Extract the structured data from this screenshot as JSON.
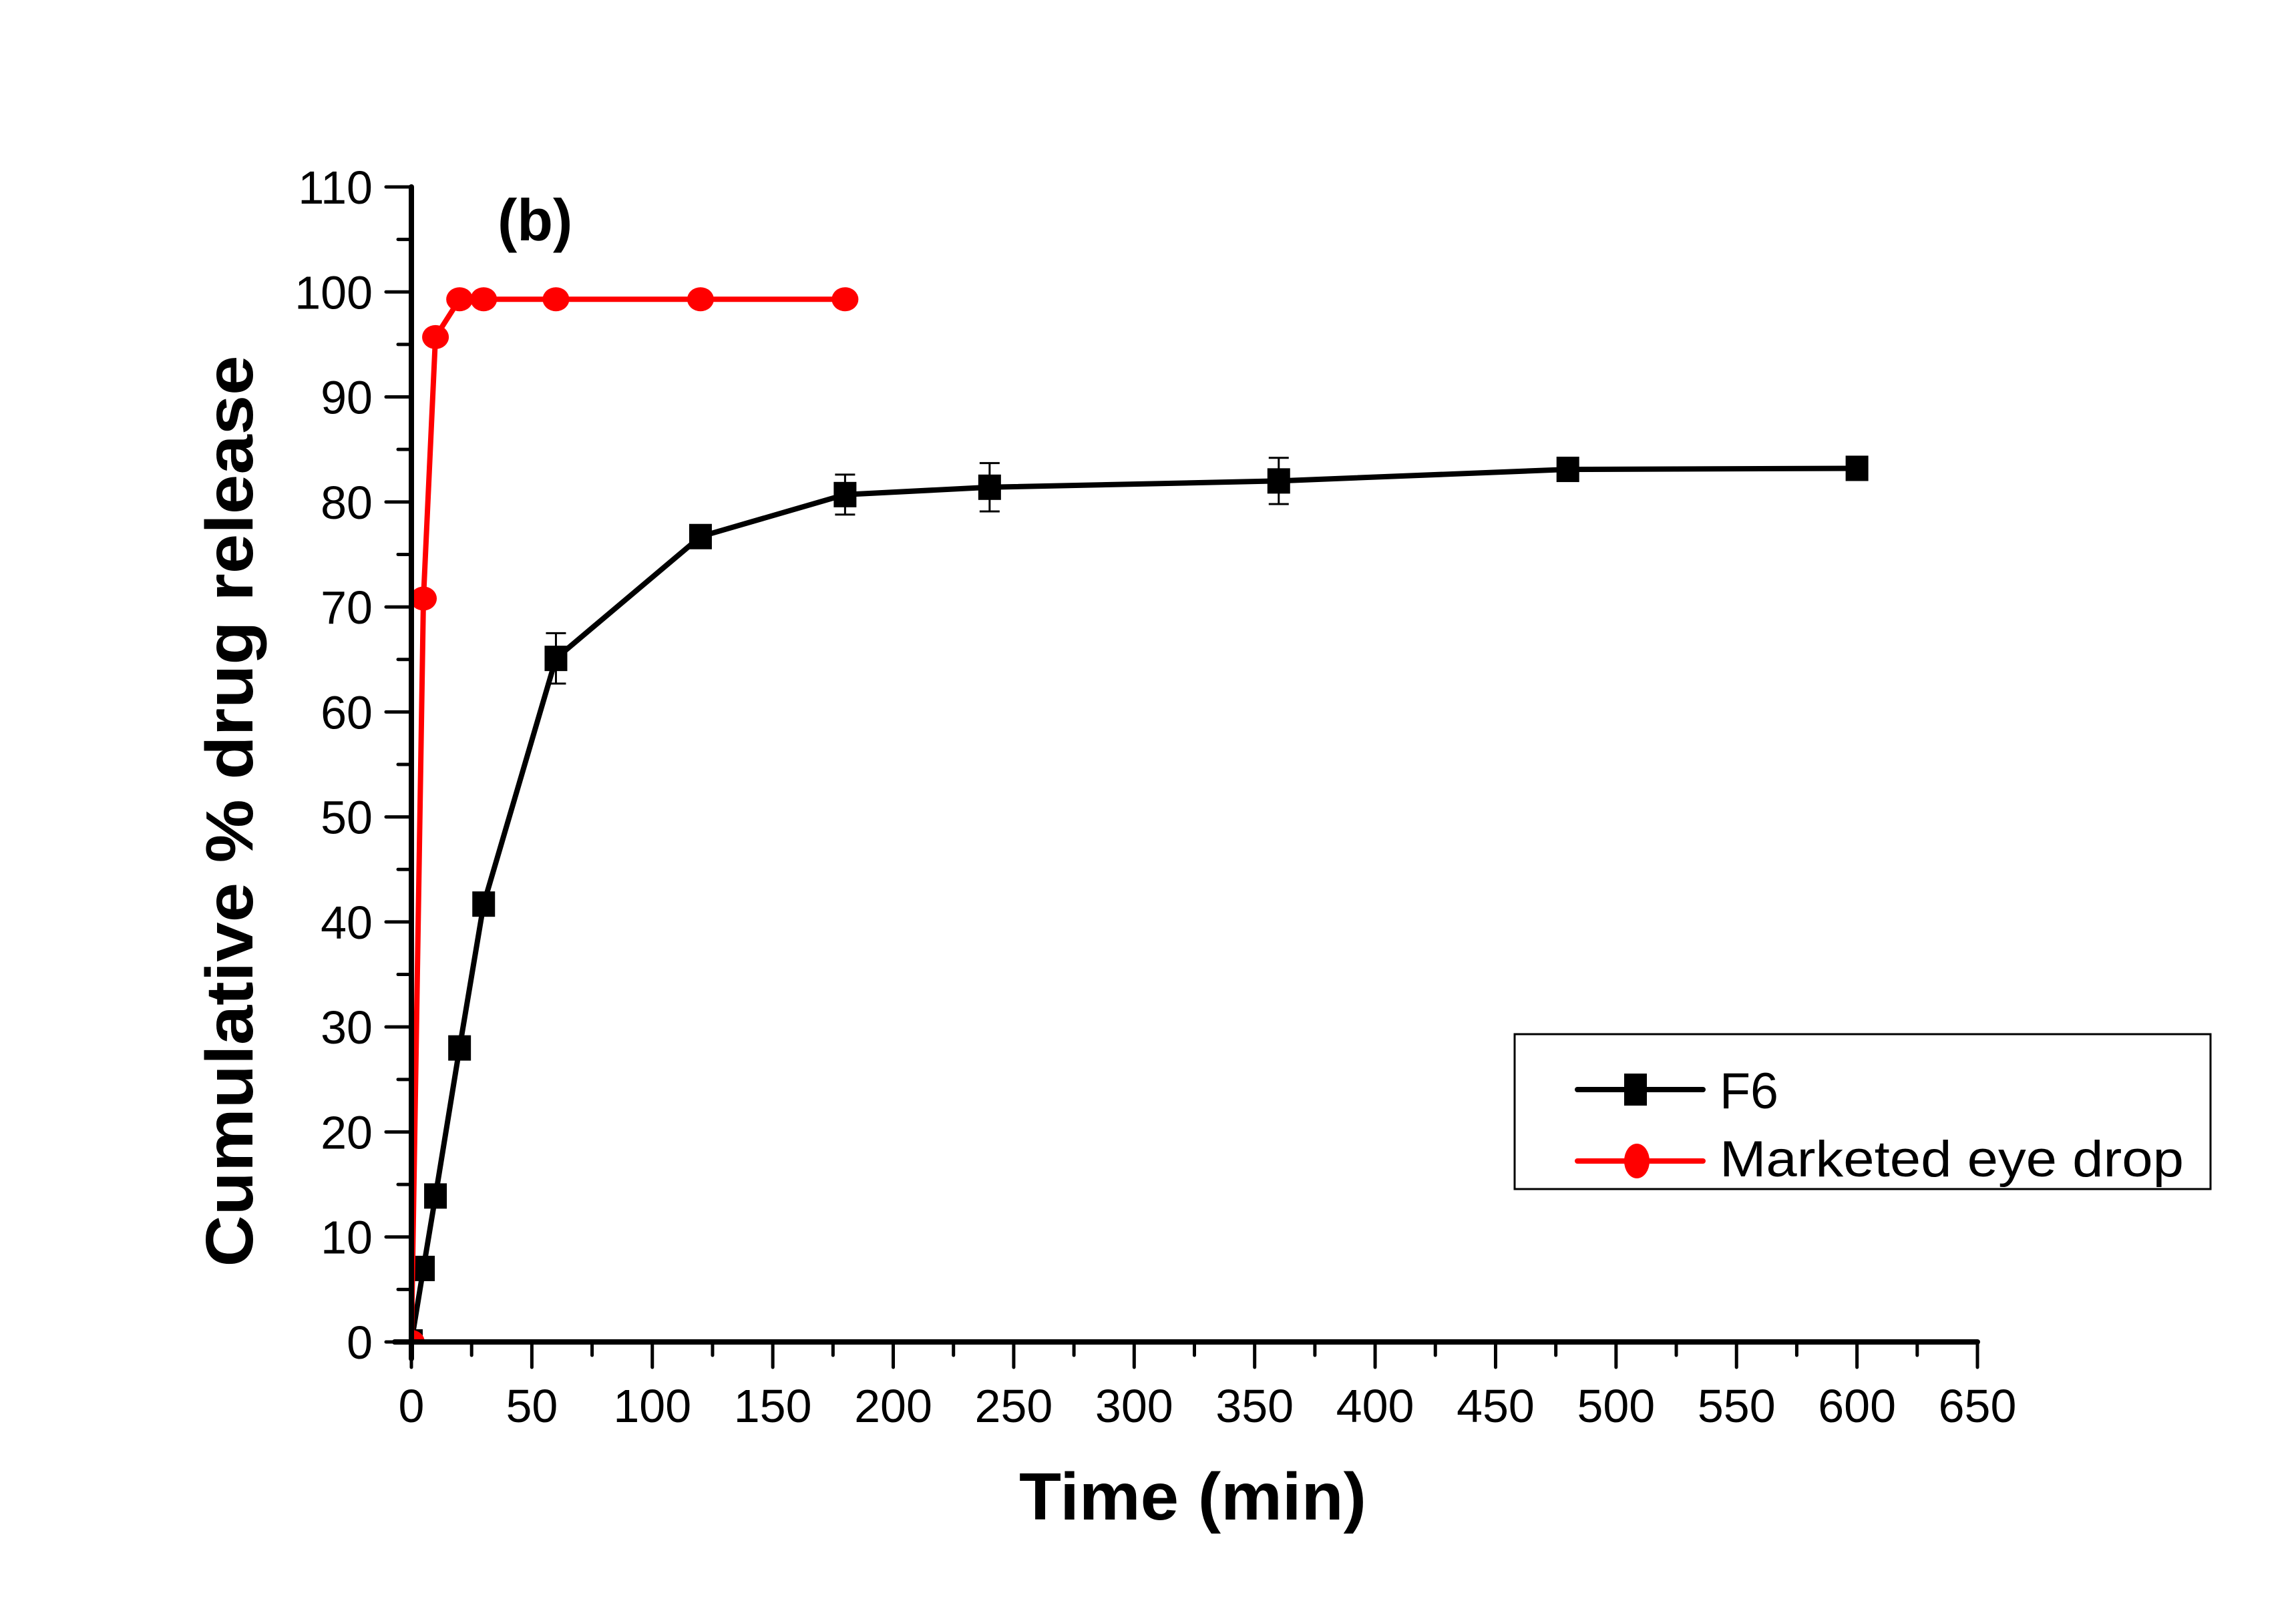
{
  "chart_data": {
    "type": "line",
    "title": "",
    "panel_label": "(b)",
    "xlabel": "Time (min)",
    "ylabel": "Cumulative % drug release",
    "xlim": [
      0,
      650
    ],
    "ylim": [
      0,
      110
    ],
    "x_ticks": [
      0,
      50,
      100,
      150,
      200,
      250,
      300,
      350,
      400,
      450,
      500,
      550,
      600,
      650
    ],
    "y_ticks": [
      0,
      10,
      20,
      30,
      40,
      50,
      60,
      70,
      80,
      90,
      100,
      110
    ],
    "x_minor_step": 25,
    "y_minor_step": 5,
    "grid": false,
    "legend_position": "lower-right",
    "series": [
      {
        "name": "F6",
        "color": "#000000",
        "marker": "square",
        "x": [
          0,
          5,
          10,
          20,
          30,
          60,
          120,
          180,
          240,
          360,
          480,
          600
        ],
        "y": [
          0,
          7.0,
          13.9,
          28.0,
          41.7,
          65.1,
          76.7,
          80.7,
          81.4,
          82.0,
          83.1,
          83.2
        ],
        "error": [
          0,
          0,
          0,
          0,
          0,
          2.4,
          0,
          1.9,
          2.3,
          2.2,
          0,
          0
        ]
      },
      {
        "name": "Marketed eye drop",
        "color": "#ff0000",
        "marker": "circle",
        "x": [
          0,
          5,
          10,
          20,
          30,
          60,
          120,
          180
        ],
        "y": [
          0,
          70.8,
          95.7,
          99.3,
          99.3,
          99.3,
          99.3,
          99.3
        ]
      }
    ]
  }
}
